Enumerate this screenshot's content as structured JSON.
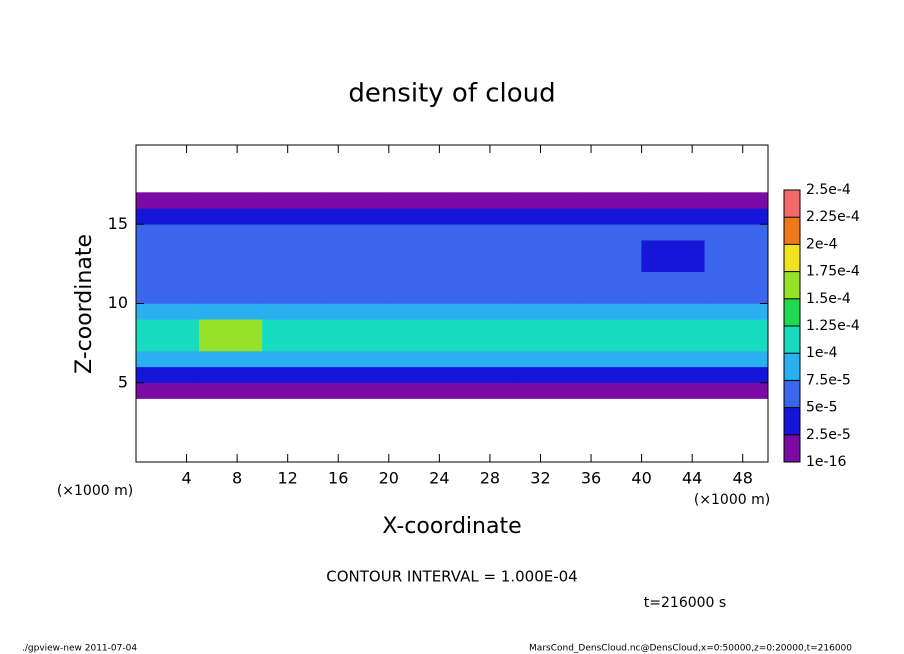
{
  "chart_data": {
    "type": "heatmap",
    "title": "density of cloud",
    "x_label": "X-coordinate",
    "y_label": "Z-coordinate",
    "x_unit_label": "(×1000 m)",
    "y_unit_label": "(×1000 m)",
    "xlim": [
      0,
      50
    ],
    "ylim": [
      0,
      20
    ],
    "xticks": [
      4,
      8,
      12,
      16,
      20,
      24,
      28,
      32,
      36,
      40,
      44,
      48
    ],
    "yticks": [
      5,
      10,
      15
    ],
    "x": [
      2.5,
      7.5,
      12.5,
      17.5,
      22.5,
      27.5,
      32.5,
      37.5,
      42.5,
      47.5
    ],
    "z": [
      4.5,
      5.5,
      6.5,
      7.5,
      8.5,
      9.5,
      10.5,
      11.5,
      12.5,
      13.5,
      14.5,
      15.5,
      16.5
    ],
    "values": [
      [
        1.5e-05,
        1.5e-05,
        1.5e-05,
        1.5e-05,
        1.5e-05,
        1.5e-05,
        1.5e-05,
        1.5e-05,
        1.5e-05,
        1.5e-05
      ],
      [
        4e-05,
        4e-05,
        3.5e-05,
        4e-05,
        4e-05,
        3.5e-05,
        4e-05,
        4e-05,
        4e-05,
        4e-05
      ],
      [
        8e-05,
        9e-05,
        8e-05,
        8e-05,
        8e-05,
        8e-05,
        8e-05,
        8e-05,
        8e-05,
        8e-05
      ],
      [
        0.00011,
        0.00016,
        0.00012,
        0.00011,
        0.00011,
        0.000105,
        0.00011,
        0.00011,
        0.000105,
        0.00011
      ],
      [
        0.00011,
        0.00015,
        0.000115,
        0.00011,
        0.00011,
        0.00011,
        0.000105,
        0.00011,
        0.00011,
        0.000105
      ],
      [
        8e-05,
        9e-05,
        8e-05,
        8e-05,
        7.8e-05,
        8e-05,
        7.8e-05,
        7.8e-05,
        7.8e-05,
        7.8e-05
      ],
      [
        6e-05,
        6e-05,
        6e-05,
        6e-05,
        6e-05,
        6e-05,
        6e-05,
        6e-05,
        6e-05,
        6e-05
      ],
      [
        5.5e-05,
        5.5e-05,
        5.5e-05,
        5.5e-05,
        5.5e-05,
        5.5e-05,
        5.5e-05,
        5.5e-05,
        5.5e-05,
        5.5e-05
      ],
      [
        5.5e-05,
        5.5e-05,
        5.5e-05,
        5.5e-05,
        5.5e-05,
        5.5e-05,
        5.5e-05,
        5.5e-05,
        4.8e-05,
        5.5e-05
      ],
      [
        5e-05,
        5e-05,
        5e-05,
        5e-05,
        5e-05,
        5e-05,
        5e-05,
        5e-05,
        4.5e-05,
        5e-05
      ],
      [
        5e-05,
        5e-05,
        5e-05,
        5e-05,
        5e-05,
        5e-05,
        5e-05,
        5e-05,
        5e-05,
        5e-05
      ],
      [
        3e-05,
        3e-05,
        3e-05,
        3e-05,
        3e-05,
        3e-05,
        3e-05,
        3e-05,
        3e-05,
        3e-05
      ],
      [
        1e-05,
        1e-05,
        1e-05,
        1.2e-05,
        1.2e-05,
        1.2e-05,
        1e-05,
        1e-05,
        1e-05,
        1e-05
      ]
    ],
    "levels": [
      {
        "value": 1e-16,
        "label": "1e-16"
      },
      {
        "value": 2.5e-05,
        "label": "2.5e-5"
      },
      {
        "value": 5e-05,
        "label": "5e-5"
      },
      {
        "value": 7.5e-05,
        "label": "7.5e-5"
      },
      {
        "value": 0.0001,
        "label": "1e-4"
      },
      {
        "value": 0.000125,
        "label": "1.25e-4"
      },
      {
        "value": 0.00015,
        "label": "1.5e-4"
      },
      {
        "value": 0.000175,
        "label": "1.75e-4"
      },
      {
        "value": 0.0002,
        "label": "2e-4"
      },
      {
        "value": 0.000225,
        "label": "2.25e-4"
      },
      {
        "value": 0.00025,
        "label": "2.5e-4"
      }
    ],
    "colors": [
      "#7c0aa4",
      "#1616d8",
      "#3a66ee",
      "#2ab0f0",
      "#18dcc0",
      "#22d850",
      "#96e22a",
      "#f0e21e",
      "#f0781a",
      "#f46a6a"
    ],
    "contour_interval_text": "CONTOUR INTERVAL = 1.000E-04",
    "time_text": "t=216000 s",
    "footer_left": "./gpview-new  2011-07-04",
    "footer_right": "MarsCond_DensCloud.nc@DensCloud,x=0:50000,z=0:20000,t=216000"
  }
}
